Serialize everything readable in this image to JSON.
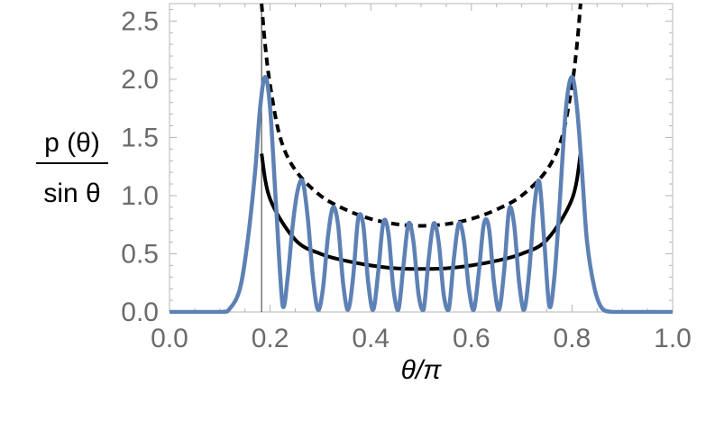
{
  "chart_data": {
    "type": "line",
    "title": "",
    "xlabel": "θ/π",
    "ylabel": {
      "numerator": "p (θ)",
      "denominator": "sin θ"
    },
    "xlim": [
      0.0,
      1.0
    ],
    "ylim": [
      0.0,
      2.65
    ],
    "x_ticks": [
      "0.0",
      "0.2",
      "0.4",
      "0.6",
      "0.8",
      "1.0"
    ],
    "y_ticks": [
      "0.0",
      "0.5",
      "1.0",
      "1.5",
      "2.0",
      "2.5"
    ],
    "grid": false,
    "legend": "none",
    "vertical_line_x": 0.183,
    "series": [
      {
        "style": "solid",
        "color": "#000000",
        "x": [
          0.183,
          0.2,
          0.25,
          0.3,
          0.35,
          0.4,
          0.45,
          0.5,
          0.55,
          0.6,
          0.65,
          0.7,
          0.75,
          0.8,
          0.817
        ],
        "y": [
          1.36,
          0.97,
          0.62,
          0.5,
          0.44,
          0.4,
          0.375,
          0.37,
          0.375,
          0.4,
          0.44,
          0.5,
          0.62,
          0.97,
          1.36
        ]
      },
      {
        "style": "dashed",
        "color": "#000000",
        "x": [
          0.183,
          0.19,
          0.2,
          0.22,
          0.25,
          0.3,
          0.35,
          0.4,
          0.45,
          0.5,
          0.55,
          0.6,
          0.65,
          0.7,
          0.75,
          0.78,
          0.8,
          0.81,
          0.817
        ],
        "y": [
          2.65,
          2.3,
          1.95,
          1.5,
          1.22,
          1.0,
          0.88,
          0.8,
          0.755,
          0.74,
          0.755,
          0.8,
          0.88,
          1.0,
          1.22,
          1.5,
          1.95,
          2.3,
          2.65
        ]
      },
      {
        "style": "solid",
        "color": "#5e81b5",
        "x": [
          0.0,
          0.1,
          0.12,
          0.14,
          0.155,
          0.17,
          0.18,
          0.19,
          0.2,
          0.212,
          0.225,
          0.235,
          0.245,
          0.255,
          0.265,
          0.275,
          0.285,
          0.295,
          0.305,
          0.315,
          0.325,
          0.335,
          0.345,
          0.355,
          0.365,
          0.375,
          0.385,
          0.395,
          0.405,
          0.415,
          0.425,
          0.435,
          0.445,
          0.455,
          0.465,
          0.475,
          0.485,
          0.495,
          0.505,
          0.515,
          0.525,
          0.535,
          0.545,
          0.555,
          0.565,
          0.575,
          0.585,
          0.595,
          0.605,
          0.615,
          0.625,
          0.635,
          0.645,
          0.655,
          0.665,
          0.675,
          0.685,
          0.695,
          0.705,
          0.715,
          0.725,
          0.735,
          0.745,
          0.755,
          0.765,
          0.775,
          0.788,
          0.8,
          0.81,
          0.82,
          0.83,
          0.845,
          0.86,
          0.88,
          0.9,
          1.0
        ],
        "y": [
          0.0,
          0.0,
          0.03,
          0.2,
          0.6,
          1.2,
          1.75,
          2.02,
          1.75,
          0.9,
          0.05,
          0.3,
          0.75,
          1.05,
          1.12,
          0.8,
          0.3,
          0.02,
          0.2,
          0.65,
          0.9,
          0.75,
          0.25,
          0.02,
          0.3,
          0.8,
          0.75,
          0.25,
          0.02,
          0.35,
          0.77,
          0.68,
          0.2,
          0.02,
          0.4,
          0.76,
          0.6,
          0.15,
          0.02,
          0.45,
          0.76,
          0.6,
          0.15,
          0.02,
          0.45,
          0.76,
          0.62,
          0.2,
          0.02,
          0.35,
          0.76,
          0.72,
          0.25,
          0.02,
          0.35,
          0.88,
          0.75,
          0.25,
          0.02,
          0.35,
          0.9,
          1.12,
          0.6,
          0.05,
          0.3,
          0.9,
          1.75,
          2.02,
          1.75,
          1.2,
          0.6,
          0.2,
          0.03,
          0.0,
          0.0,
          0.0
        ]
      }
    ]
  }
}
